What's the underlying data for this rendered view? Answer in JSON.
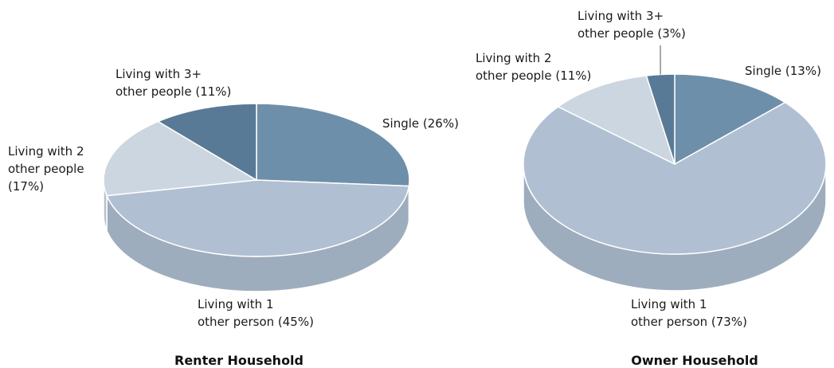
{
  "chart_data": [
    {
      "type": "pie",
      "title": "Renter Household",
      "slices": [
        {
          "lines": [
            "Single (26%)"
          ],
          "value": 26,
          "color": "#6e8fa9"
        },
        {
          "lines": [
            "Living with 1",
            "other person (45%)"
          ],
          "value": 45,
          "color": "#b0c0d2"
        },
        {
          "lines": [
            "Living with 2",
            "other people",
            "(17%)"
          ],
          "value": 17,
          "color": "#ccd6e0"
        },
        {
          "lines": [
            "Living with 3+",
            "other people (11%)"
          ],
          "value": 11,
          "color": "#587a96"
        }
      ]
    },
    {
      "type": "pie",
      "title": "Owner Household",
      "slices": [
        {
          "lines": [
            "Single (13%)"
          ],
          "value": 13,
          "color": "#6e8fa9"
        },
        {
          "lines": [
            "Living with 1",
            "other person (73%)"
          ],
          "value": 73,
          "color": "#b0c0d2"
        },
        {
          "lines": [
            "Living with 2",
            "other people (11%)"
          ],
          "value": 11,
          "color": "#ccd6e0"
        },
        {
          "lines": [
            "Living with 3+",
            "other people (3%)"
          ],
          "value": 3,
          "color": "#587a96"
        }
      ]
    }
  ]
}
